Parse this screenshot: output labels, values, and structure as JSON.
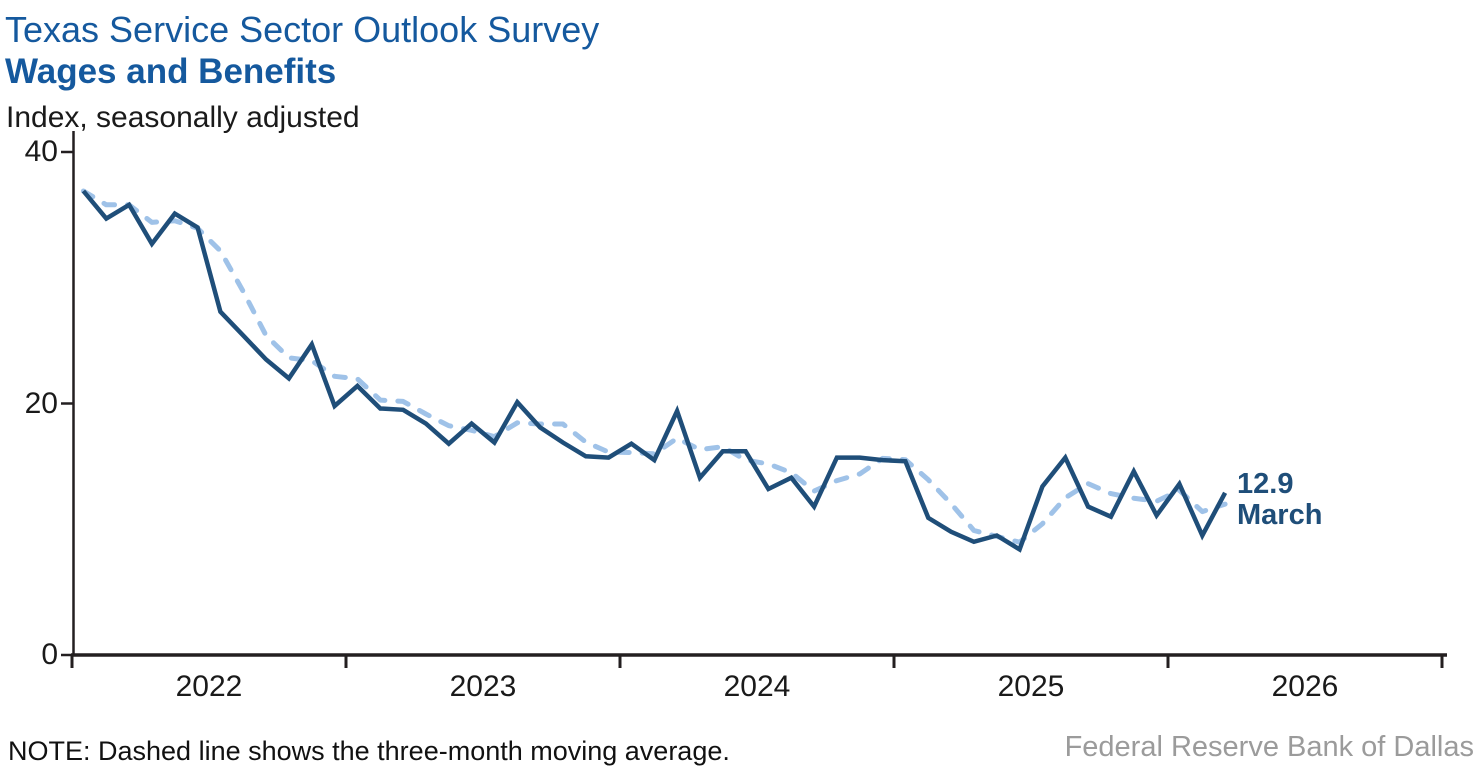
{
  "header": {
    "title": "Texas Service Sector Outlook Survey",
    "subtitle": "Wages and Benefits",
    "units_label": "Index, seasonally adjusted"
  },
  "annotation": {
    "value_label": "12.9",
    "month_label": "March"
  },
  "footer": {
    "note": "NOTE: Dashed line shows the three-month moving average.",
    "source": "Federal Reserve Bank of Dallas"
  },
  "colors": {
    "title_blue": "#15599E",
    "index_line": "#1F4E79",
    "moving_average_line": "#9FC2E8",
    "axis": "#231F20",
    "source_gray": "#9B9B9B"
  },
  "chart_data": {
    "type": "line",
    "title": "Texas Service Sector Outlook Survey — Wages and Benefits",
    "ylabel": "Index, seasonally adjusted",
    "xlabel": "",
    "ylim": [
      0,
      41.7
    ],
    "y_ticks": [
      0,
      20,
      40
    ],
    "x_tick_years": [
      "2022",
      "2023",
      "2024",
      "2025",
      "2026"
    ],
    "grid": false,
    "legend_position": "none",
    "months": [
      "2022-01",
      "2022-02",
      "2022-03",
      "2022-04",
      "2022-05",
      "2022-06",
      "2022-07",
      "2022-08",
      "2022-09",
      "2022-10",
      "2022-11",
      "2022-12",
      "2023-01",
      "2023-02",
      "2023-03",
      "2023-04",
      "2023-05",
      "2023-06",
      "2023-07",
      "2023-08",
      "2023-09",
      "2023-10",
      "2023-11",
      "2023-12",
      "2024-01",
      "2024-02",
      "2024-03",
      "2024-04",
      "2024-05",
      "2024-06",
      "2024-07",
      "2024-08",
      "2024-09",
      "2024-10",
      "2024-11",
      "2024-12",
      "2025-01",
      "2025-02",
      "2025-03",
      "2025-04",
      "2025-05",
      "2025-06",
      "2025-07",
      "2025-08",
      "2025-09",
      "2025-10",
      "2025-11",
      "2025-12",
      "2026-01",
      "2026-02",
      "2026-03"
    ],
    "series": [
      {
        "name": "Wages and benefits index",
        "line_style": "solid",
        "color": "#1F4E79",
        "values": [
          36.9,
          34.7,
          35.8,
          32.7,
          35.1,
          34.0,
          27.3,
          25.4,
          23.5,
          22.0,
          24.7,
          19.8,
          21.4,
          19.6,
          19.5,
          18.4,
          16.8,
          18.4,
          16.9,
          20.1,
          18.1,
          16.9,
          15.8,
          15.7,
          16.8,
          15.5,
          19.4,
          14.1,
          16.2,
          16.2,
          13.2,
          14.1,
          11.8,
          15.7,
          15.7,
          15.5,
          15.4,
          10.9,
          9.8,
          9.0,
          9.5,
          8.4,
          13.4,
          15.7,
          11.8,
          11.0,
          14.6,
          11.1,
          13.6,
          9.5,
          12.9
        ]
      },
      {
        "name": "Three-month moving average",
        "line_style": "dashed",
        "color": "#9FC2E8",
        "derived_from": "trailing three-month moving average of the index series"
      }
    ],
    "last_point": {
      "month": "March 2026",
      "value": 12.9
    }
  }
}
